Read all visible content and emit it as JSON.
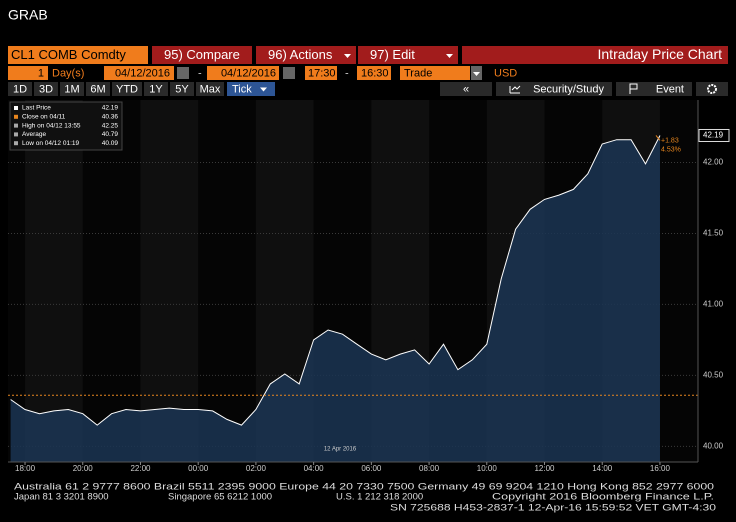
{
  "window_title": "GRAB",
  "toolbar": {
    "security": "CL1 COMB Comdty",
    "buttons": [
      "95) Compare",
      "96) Actions",
      "97) Edit"
    ],
    "chart_name": "Intraday Price Chart"
  },
  "params": {
    "days": "1",
    "period_unit": "Day(s)",
    "start_date": "04/12/2016",
    "separator": "-",
    "end_date": "04/12/2016",
    "start_time": "17:30",
    "end_time": "16:30",
    "field": "Trade",
    "currency": "USD"
  },
  "ranges": [
    "1D",
    "3D",
    "1M",
    "6M",
    "YTD",
    "1Y",
    "5Y",
    "Max"
  ],
  "selected_range": "Tick",
  "right_buttons": [
    "«",
    "Security/Study",
    "Event"
  ],
  "chart_data": {
    "type": "line",
    "x": [
      "17:30",
      "18:00",
      "18:30",
      "19:00",
      "19:30",
      "20:00",
      "20:30",
      "21:00",
      "21:30",
      "22:00",
      "22:30",
      "23:00",
      "23:30",
      "00:00",
      "00:30",
      "01:00",
      "01:30",
      "02:00",
      "02:30",
      "03:00",
      "03:30",
      "04:00",
      "04:30",
      "05:00",
      "05:30",
      "06:00",
      "06:30",
      "07:00",
      "07:30",
      "08:00",
      "08:30",
      "09:00",
      "09:30",
      "10:00",
      "10:30",
      "11:00",
      "11:30",
      "12:00",
      "12:30",
      "13:00",
      "13:30",
      "14:00",
      "14:30",
      "15:00",
      "15:30",
      "16:00",
      "16:30"
    ],
    "series": [
      {
        "name": "Last Price",
        "color": "#ffffff",
        "last": 42.19,
        "values": [
          40.33,
          40.26,
          40.23,
          40.25,
          40.26,
          40.23,
          40.15,
          40.23,
          40.26,
          40.25,
          40.26,
          40.27,
          40.26,
          40.26,
          40.25,
          40.19,
          40.15,
          40.26,
          40.44,
          40.51,
          40.44,
          40.75,
          40.82,
          40.79,
          40.72,
          40.65,
          40.61,
          40.65,
          40.68,
          40.58,
          40.72,
          40.54,
          40.61,
          40.72,
          41.18,
          41.53,
          41.67,
          41.74,
          41.77,
          41.81,
          41.92,
          42.13,
          42.16,
          42.16,
          41.99,
          42.19,
          null
        ]
      }
    ],
    "stats": [
      {
        "label": "Close on 04/11",
        "value": 40.36
      },
      {
        "label": "High on 04/12 13:55",
        "value": 42.25
      },
      {
        "label": "Average",
        "value": 40.79
      },
      {
        "label": "Low on 04/12 01:19",
        "value": 40.09
      }
    ],
    "change_labels": [
      "+1.83",
      "4.53%"
    ],
    "date_label": "12 Apr 2016",
    "xticks": [
      "18:00",
      "20:00",
      "22:00",
      "00:00",
      "02:00",
      "04:00",
      "06:00",
      "08:00",
      "10:00",
      "12:00",
      "14:00",
      "16:00"
    ],
    "ylim": [
      39.89,
      42.44
    ],
    "yticks": [
      {
        "value": 40,
        "label": "40.00"
      },
      {
        "value": 40.5,
        "label": "40.50"
      },
      {
        "value": 41,
        "label": "41.00"
      },
      {
        "value": 41.5,
        "label": "41.50"
      },
      {
        "value": 42,
        "label": "42.00"
      }
    ],
    "grid": true,
    "fill_color": "#1b3553",
    "close_color": "#e8861e"
  },
  "footer": {
    "line1": "Australia 61 2 9777 8600 Brazil 5511 2395 9000 Europe 44 20 7330 7500 Germany 49 69 9204 1210 Hong Kong 852 2977 6000",
    "line2": [
      "Japan 81 3 3201 8900",
      "Singapore 65 6212 1000",
      "U.S. 1 212 318 2000",
      "Copyright 2016 Bloomberg Finance L.P."
    ],
    "line3": "SN 725688 H453-2837-1 12-Apr-16 15:59:52 VET  GMT-4:30"
  }
}
